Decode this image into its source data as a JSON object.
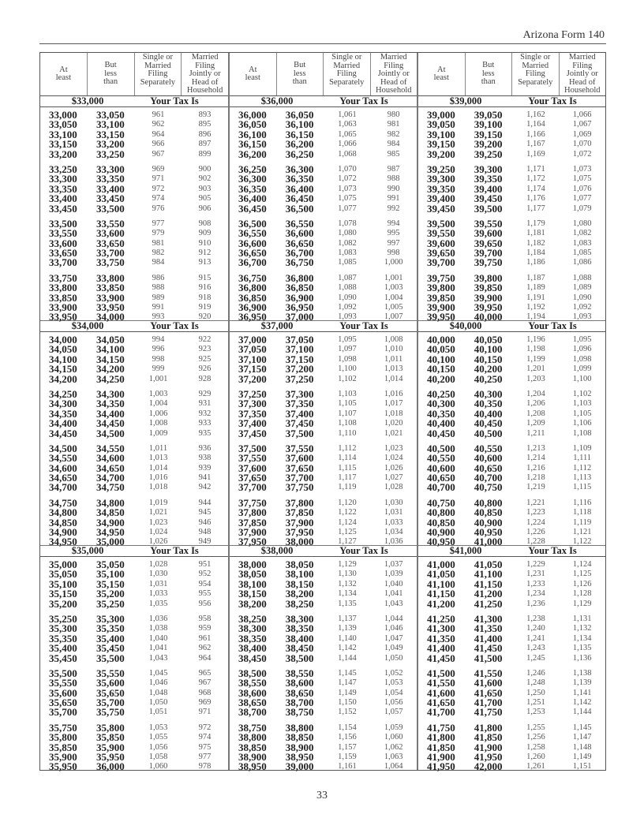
{
  "form_title": "Arizona Form 140",
  "page_number": "33",
  "column_headers": [
    "At\nleast",
    "But\nless\nthan",
    "Single or\nMarried\nFiling\nSeparately",
    "Married\nFiling\nJointly or\nHead of\nHousehold"
  ],
  "your_tax_is": "Your Tax Is",
  "columns": [
    {
      "blocks": [
        {
          "heading": "$33,000",
          "at_least": [
            "33,000",
            "33,050",
            "33,100",
            "33,150",
            "33,200",
            "33,250",
            "33,300",
            "33,350",
            "33,400",
            "33,450",
            "33,500",
            "33,550",
            "33,600",
            "33,650",
            "33,700",
            "33,750",
            "33,800",
            "33,850",
            "33,900",
            "33,950"
          ],
          "less_than": [
            "33,050",
            "33,100",
            "33,150",
            "33,200",
            "33,250",
            "33,300",
            "33,350",
            "33,400",
            "33,450",
            "33,500",
            "33,550",
            "33,600",
            "33,650",
            "33,700",
            "33,750",
            "33,800",
            "33,850",
            "33,900",
            "33,950",
            "34,000"
          ],
          "single": [
            "961",
            "962",
            "964",
            "966",
            "967",
            "969",
            "971",
            "972",
            "974",
            "976",
            "977",
            "979",
            "981",
            "982",
            "984",
            "986",
            "988",
            "989",
            "991",
            "993"
          ],
          "married": [
            "893",
            "895",
            "896",
            "897",
            "899",
            "900",
            "902",
            "903",
            "905",
            "906",
            "908",
            "909",
            "910",
            "912",
            "913",
            "915",
            "916",
            "918",
            "919",
            "920"
          ]
        },
        {
          "heading": "$34,000",
          "at_least": [
            "34,000",
            "34,050",
            "34,100",
            "34,150",
            "34,200",
            "34,250",
            "34,300",
            "34,350",
            "34,400",
            "34,450",
            "34,500",
            "34,550",
            "34,600",
            "34,650",
            "34,700",
            "34,750",
            "34,800",
            "34,850",
            "34,900",
            "34,950"
          ],
          "less_than": [
            "34,050",
            "34,100",
            "34,150",
            "34,200",
            "34,250",
            "34,300",
            "34,350",
            "34,400",
            "34,450",
            "34,500",
            "34,550",
            "34,600",
            "34,650",
            "34,700",
            "34,750",
            "34,800",
            "34,850",
            "34,900",
            "34,950",
            "35,000"
          ],
          "single": [
            "994",
            "996",
            "998",
            "999",
            "1,001",
            "1,003",
            "1,004",
            "1,006",
            "1,008",
            "1,009",
            "1,011",
            "1,013",
            "1,014",
            "1,016",
            "1,018",
            "1,019",
            "1,021",
            "1,023",
            "1,024",
            "1,026"
          ],
          "married": [
            "922",
            "923",
            "925",
            "926",
            "928",
            "929",
            "931",
            "932",
            "933",
            "935",
            "936",
            "938",
            "939",
            "941",
            "942",
            "944",
            "945",
            "946",
            "948",
            "949"
          ]
        },
        {
          "heading": "$35,000",
          "at_least": [
            "35,000",
            "35,050",
            "35,100",
            "35,150",
            "35,200",
            "35,250",
            "35,300",
            "35,350",
            "35,400",
            "35,450",
            "35,500",
            "35,550",
            "35,600",
            "35,650",
            "35,700",
            "35,750",
            "35,800",
            "35,850",
            "35,900",
            "35,950"
          ],
          "less_than": [
            "35,050",
            "35,100",
            "35,150",
            "35,200",
            "35,250",
            "35,300",
            "35,350",
            "35,400",
            "35,450",
            "35,500",
            "35,550",
            "35,600",
            "35,650",
            "35,700",
            "35,750",
            "35,800",
            "35,850",
            "35,900",
            "35,950",
            "36,000"
          ],
          "single": [
            "1,028",
            "1,030",
            "1,031",
            "1,033",
            "1,035",
            "1,036",
            "1,038",
            "1,040",
            "1,041",
            "1,043",
            "1,045",
            "1,046",
            "1,048",
            "1,050",
            "1,051",
            "1,053",
            "1,055",
            "1,056",
            "1,058",
            "1,060"
          ],
          "married": [
            "951",
            "952",
            "954",
            "955",
            "956",
            "958",
            "959",
            "961",
            "962",
            "964",
            "965",
            "967",
            "968",
            "969",
            "971",
            "972",
            "974",
            "975",
            "977",
            "978"
          ]
        }
      ]
    },
    {
      "blocks": [
        {
          "heading": "$36,000",
          "at_least": [
            "36,000",
            "36,050",
            "36,100",
            "36,150",
            "36,200",
            "36,250",
            "36,300",
            "36,350",
            "36,400",
            "36,450",
            "36,500",
            "36,550",
            "36,600",
            "36,650",
            "36,700",
            "36,750",
            "36,800",
            "36,850",
            "36,900",
            "36,950"
          ],
          "less_than": [
            "36,050",
            "36,100",
            "36,150",
            "36,200",
            "36,250",
            "36,300",
            "36,350",
            "36,400",
            "36,450",
            "36,500",
            "36,550",
            "36,600",
            "36,650",
            "36,700",
            "36,750",
            "36,800",
            "36,850",
            "36,900",
            "36,950",
            "37,000"
          ],
          "single": [
            "1,061",
            "1,063",
            "1,065",
            "1,066",
            "1,068",
            "1,070",
            "1,072",
            "1,073",
            "1,075",
            "1,077",
            "1,078",
            "1,080",
            "1,082",
            "1,083",
            "1,085",
            "1,087",
            "1,088",
            "1,090",
            "1,092",
            "1,093"
          ],
          "married": [
            "980",
            "981",
            "982",
            "984",
            "985",
            "987",
            "988",
            "990",
            "991",
            "992",
            "994",
            "995",
            "997",
            "998",
            "1,000",
            "1,001",
            "1,003",
            "1,004",
            "1,005",
            "1,007"
          ]
        },
        {
          "heading": "$37,000",
          "at_least": [
            "37,000",
            "37,050",
            "37,100",
            "37,150",
            "37,200",
            "37,250",
            "37,300",
            "37,350",
            "37,400",
            "37,450",
            "37,500",
            "37,550",
            "37,600",
            "37,650",
            "37,700",
            "37,750",
            "37,800",
            "37,850",
            "37,900",
            "37,950"
          ],
          "less_than": [
            "37,050",
            "37,100",
            "37,150",
            "37,200",
            "37,250",
            "37,300",
            "37,350",
            "37,400",
            "37,450",
            "37,500",
            "37,550",
            "37,600",
            "37,650",
            "37,700",
            "37,750",
            "37,800",
            "37,850",
            "37,900",
            "37,950",
            "38,000"
          ],
          "single": [
            "1,095",
            "1,097",
            "1,098",
            "1,100",
            "1,102",
            "1,103",
            "1,105",
            "1,107",
            "1,108",
            "1,110",
            "1,112",
            "1,114",
            "1,115",
            "1,117",
            "1,119",
            "1,120",
            "1,122",
            "1,124",
            "1,125",
            "1,127"
          ],
          "married": [
            "1,008",
            "1,010",
            "1,011",
            "1,013",
            "1,014",
            "1,016",
            "1,017",
            "1,018",
            "1,020",
            "1,021",
            "1,023",
            "1,024",
            "1,026",
            "1,027",
            "1,028",
            "1,030",
            "1,031",
            "1,033",
            "1,034",
            "1,036"
          ]
        },
        {
          "heading": "$38,000",
          "at_least": [
            "38,000",
            "38,050",
            "38,100",
            "38,150",
            "38,200",
            "38,250",
            "38,300",
            "38,350",
            "38,400",
            "38,450",
            "38,500",
            "38,550",
            "38,600",
            "38,650",
            "38,700",
            "38,750",
            "38,800",
            "38,850",
            "38,900",
            "38,950"
          ],
          "less_than": [
            "38,050",
            "38,100",
            "38,150",
            "38,200",
            "38,250",
            "38,300",
            "38,350",
            "38,400",
            "38,450",
            "38,500",
            "38,550",
            "38,600",
            "38,650",
            "38,700",
            "38,750",
            "38,800",
            "38,850",
            "38,900",
            "38,950",
            "39,000"
          ],
          "single": [
            "1,129",
            "1,130",
            "1,132",
            "1,134",
            "1,135",
            "1,137",
            "1,139",
            "1,140",
            "1,142",
            "1,144",
            "1,145",
            "1,147",
            "1,149",
            "1,150",
            "1,152",
            "1,154",
            "1,156",
            "1,157",
            "1,159",
            "1,161"
          ],
          "married": [
            "1,037",
            "1,039",
            "1,040",
            "1,041",
            "1,043",
            "1,044",
            "1,046",
            "1,047",
            "1,049",
            "1,050",
            "1,052",
            "1,053",
            "1,054",
            "1,056",
            "1,057",
            "1,059",
            "1,060",
            "1,062",
            "1,063",
            "1,064"
          ]
        }
      ]
    },
    {
      "blocks": [
        {
          "heading": "$39,000",
          "at_least": [
            "39,000",
            "39,050",
            "39,100",
            "39,150",
            "39,200",
            "39,250",
            "39,300",
            "39,350",
            "39,400",
            "39,450",
            "39,500",
            "39,550",
            "39,600",
            "39,650",
            "39,700",
            "39,750",
            "39,800",
            "39,850",
            "39,900",
            "39,950"
          ],
          "less_than": [
            "39,050",
            "39,100",
            "39,150",
            "39,200",
            "39,250",
            "39,300",
            "39,350",
            "39,400",
            "39,450",
            "39,500",
            "39,550",
            "39,600",
            "39,650",
            "39,700",
            "39,750",
            "39,800",
            "39,850",
            "39,900",
            "39,950",
            "40,000"
          ],
          "single": [
            "1,162",
            "1,164",
            "1,166",
            "1,167",
            "1,169",
            "1,171",
            "1,172",
            "1,174",
            "1,176",
            "1,177",
            "1,179",
            "1,181",
            "1,182",
            "1,184",
            "1,186",
            "1,187",
            "1,189",
            "1,191",
            "1,192",
            "1,194"
          ],
          "married": [
            "1,066",
            "1,067",
            "1,069",
            "1,070",
            "1,072",
            "1,073",
            "1,075",
            "1,076",
            "1,077",
            "1,079",
            "1,080",
            "1,082",
            "1,083",
            "1,085",
            "1,086",
            "1,088",
            "1,089",
            "1,090",
            "1,092",
            "1,093"
          ]
        },
        {
          "heading": "$40,000",
          "at_least": [
            "40,000",
            "40,050",
            "40,100",
            "40,150",
            "40,200",
            "40,250",
            "40,300",
            "40,350",
            "40,400",
            "40,450",
            "40,500",
            "40,550",
            "40,600",
            "40,650",
            "40,700",
            "40,750",
            "40,800",
            "40,850",
            "40,900",
            "40,950"
          ],
          "less_than": [
            "40,050",
            "40,100",
            "40,150",
            "40,200",
            "40,250",
            "40,300",
            "40,350",
            "40,400",
            "40,450",
            "40,500",
            "40,550",
            "40,600",
            "40,650",
            "40,700",
            "40,750",
            "40,800",
            "40,850",
            "40,900",
            "40,950",
            "41,000"
          ],
          "single": [
            "1,196",
            "1,198",
            "1,199",
            "1,201",
            "1,203",
            "1,204",
            "1,206",
            "1,208",
            "1,209",
            "1,211",
            "1,213",
            "1,214",
            "1,216",
            "1,218",
            "1,219",
            "1,221",
            "1,223",
            "1,224",
            "1,226",
            "1,228"
          ],
          "married": [
            "1,095",
            "1,096",
            "1,098",
            "1,099",
            "1,100",
            "1,102",
            "1,103",
            "1,105",
            "1,106",
            "1,108",
            "1,109",
            "1,111",
            "1,112",
            "1,113",
            "1,115",
            "1,116",
            "1,118",
            "1,119",
            "1,121",
            "1,122"
          ]
        },
        {
          "heading": "$41,000",
          "at_least": [
            "41,000",
            "41,050",
            "41,100",
            "41,150",
            "41,200",
            "41,250",
            "41,300",
            "41,350",
            "41,400",
            "41,450",
            "41,500",
            "41,550",
            "41,600",
            "41,650",
            "41,700",
            "41,750",
            "41,800",
            "41,850",
            "41,900",
            "41,950"
          ],
          "less_than": [
            "41,050",
            "41,100",
            "41,150",
            "41,200",
            "41,250",
            "41,300",
            "41,350",
            "41,400",
            "41,450",
            "41,500",
            "41,550",
            "41,600",
            "41,650",
            "41,700",
            "41,750",
            "41,800",
            "41,850",
            "41,900",
            "41,950",
            "42,000"
          ],
          "single": [
            "1,229",
            "1,231",
            "1,233",
            "1,234",
            "1,236",
            "1,238",
            "1,240",
            "1,241",
            "1,243",
            "1,245",
            "1,246",
            "1,248",
            "1,250",
            "1,251",
            "1,253",
            "1,255",
            "1,256",
            "1,258",
            "1,260",
            "1,261"
          ],
          "married": [
            "1,124",
            "1,125",
            "1,126",
            "1,128",
            "1,129",
            "1,131",
            "1,132",
            "1,134",
            "1,135",
            "1,136",
            "1,138",
            "1,139",
            "1,141",
            "1,142",
            "1,144",
            "1,145",
            "1,147",
            "1,148",
            "1,149",
            "1,151"
          ]
        }
      ]
    }
  ]
}
